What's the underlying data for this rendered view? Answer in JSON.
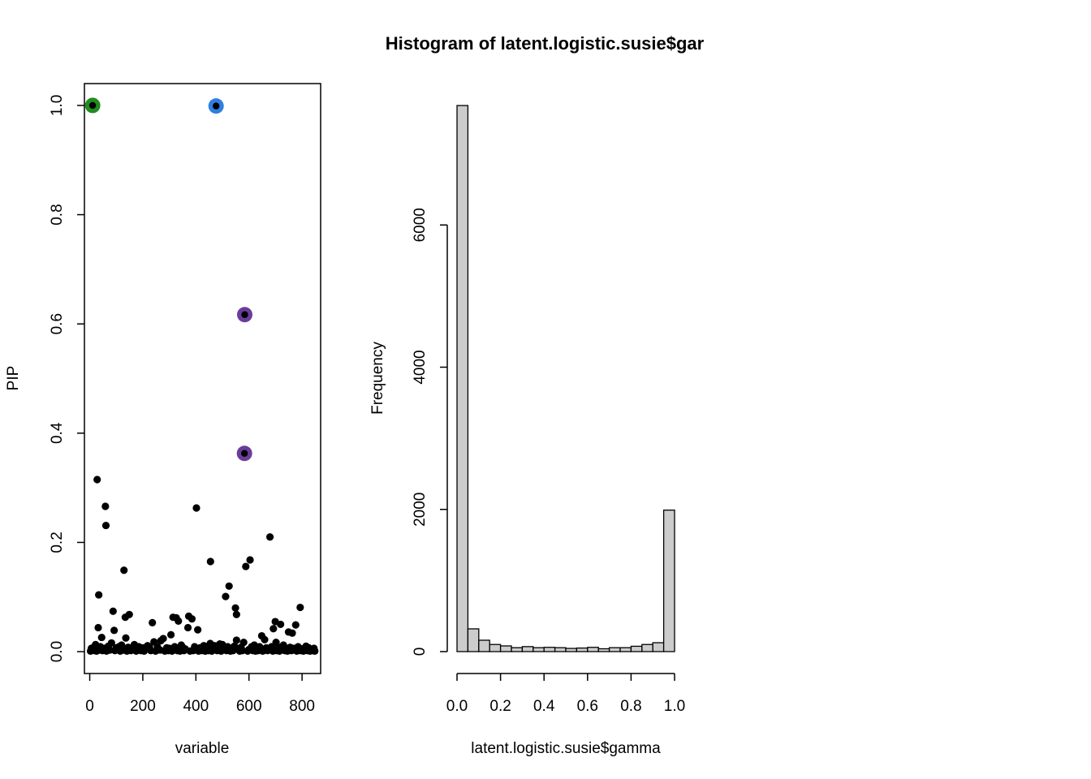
{
  "chart_data": [
    {
      "type": "scatter",
      "title": "",
      "xlabel": "variable",
      "ylabel": "PIP",
      "xlim": [
        -20,
        870
      ],
      "ylim": [
        -0.04,
        1.04
      ],
      "x_ticks": [
        "0",
        "200",
        "400",
        "600",
        "800"
      ],
      "y_ticks": [
        "0.0",
        "0.2",
        "0.4",
        "0.6",
        "0.8",
        "1.0"
      ],
      "highlighted": [
        {
          "x": 11,
          "y": 1.0,
          "color": "#228B22"
        },
        {
          "x": 476,
          "y": 0.999,
          "color": "#2F7FDF"
        },
        {
          "x": 584,
          "y": 0.617,
          "color": "#6A3D9A"
        },
        {
          "x": 583,
          "y": 0.363,
          "color": "#6A3D9A"
        }
      ],
      "points": [
        [
          28,
          0.315
        ],
        [
          59,
          0.266
        ],
        [
          61,
          0.231
        ],
        [
          402,
          0.263
        ],
        [
          679,
          0.21
        ],
        [
          455,
          0.165
        ],
        [
          604,
          0.168
        ],
        [
          588,
          0.156
        ],
        [
          129,
          0.149
        ],
        [
          525,
          0.12
        ],
        [
          34,
          0.104
        ],
        [
          512,
          0.101
        ],
        [
          793,
          0.081
        ],
        [
          549,
          0.08
        ],
        [
          88,
          0.074
        ],
        [
          149,
          0.068
        ],
        [
          553,
          0.068
        ],
        [
          373,
          0.065
        ],
        [
          314,
          0.063
        ],
        [
          134,
          0.063
        ],
        [
          385,
          0.06
        ],
        [
          326,
          0.062
        ],
        [
          334,
          0.056
        ],
        [
          699,
          0.055
        ],
        [
          719,
          0.05
        ],
        [
          236,
          0.053
        ],
        [
          776,
          0.049
        ],
        [
          32,
          0.044
        ],
        [
          370,
          0.044
        ],
        [
          692,
          0.042
        ],
        [
          407,
          0.04
        ],
        [
          92,
          0.039
        ],
        [
          749,
          0.036
        ],
        [
          763,
          0.034
        ],
        [
          306,
          0.031
        ],
        [
          648,
          0.029
        ],
        [
          45,
          0.026
        ],
        [
          136,
          0.025
        ],
        [
          277,
          0.024
        ],
        [
          659,
          0.022
        ],
        [
          553,
          0.021
        ],
        [
          268,
          0.02
        ],
        [
          242,
          0.018
        ],
        [
          702,
          0.017
        ],
        [
          82,
          0.016
        ],
        [
          580,
          0.017
        ],
        [
          22,
          0.013
        ],
        [
          454,
          0.015
        ],
        [
          490,
          0.014
        ],
        [
          120,
          0.012
        ],
        [
          168,
          0.013
        ],
        [
          218,
          0.011
        ],
        [
          345,
          0.012
        ],
        [
          430,
          0.011
        ],
        [
          500,
          0.013
        ],
        [
          620,
          0.012
        ],
        [
          730,
          0.012
        ],
        [
          815,
          0.01
        ],
        [
          6,
          0.006
        ],
        [
          15,
          0.008
        ],
        [
          40,
          0.009
        ],
        [
          55,
          0.006
        ],
        [
          70,
          0.01
        ],
        [
          100,
          0.007
        ],
        [
          110,
          0.009
        ],
        [
          145,
          0.008
        ],
        [
          160,
          0.006
        ],
        [
          185,
          0.009
        ],
        [
          200,
          0.007
        ],
        [
          210,
          0.005
        ],
        [
          225,
          0.008
        ],
        [
          255,
          0.009
        ],
        [
          260,
          0.004
        ],
        [
          290,
          0.007
        ],
        [
          300,
          0.006
        ],
        [
          320,
          0.009
        ],
        [
          350,
          0.008
        ],
        [
          360,
          0.005
        ],
        [
          395,
          0.009
        ],
        [
          415,
          0.007
        ],
        [
          440,
          0.008
        ],
        [
          465,
          0.006
        ],
        [
          470,
          0.011
        ],
        [
          505,
          0.005
        ],
        [
          520,
          0.009
        ],
        [
          535,
          0.006
        ],
        [
          545,
          0.01
        ],
        [
          560,
          0.005
        ],
        [
          570,
          0.008
        ],
        [
          600,
          0.004
        ],
        [
          610,
          0.009
        ],
        [
          630,
          0.006
        ],
        [
          640,
          0.009
        ],
        [
          665,
          0.007
        ],
        [
          675,
          0.005
        ],
        [
          685,
          0.009
        ],
        [
          710,
          0.006
        ],
        [
          720,
          0.008
        ],
        [
          740,
          0.005
        ],
        [
          755,
          0.008
        ],
        [
          770,
          0.006
        ],
        [
          785,
          0.009
        ],
        [
          800,
          0.005
        ],
        [
          825,
          0.007
        ],
        [
          835,
          0.004
        ],
        [
          845,
          0.006
        ],
        [
          3,
          0.001
        ],
        [
          18,
          0.002
        ],
        [
          26,
          0.001
        ],
        [
          37,
          0.003
        ],
        [
          48,
          0.002
        ],
        [
          63,
          0.001
        ],
        [
          76,
          0.003
        ],
        [
          95,
          0.002
        ],
        [
          115,
          0.001
        ],
        [
          127,
          0.003
        ],
        [
          140,
          0.001
        ],
        [
          155,
          0.002
        ],
        [
          175,
          0.001
        ],
        [
          193,
          0.002
        ],
        [
          205,
          0.001
        ],
        [
          230,
          0.002
        ],
        [
          248,
          0.001
        ],
        [
          265,
          0.003
        ],
        [
          283,
          0.001
        ],
        [
          296,
          0.002
        ],
        [
          310,
          0.001
        ],
        [
          330,
          0.002
        ],
        [
          340,
          0.001
        ],
        [
          355,
          0.002
        ],
        [
          378,
          0.001
        ],
        [
          390,
          0.002
        ],
        [
          410,
          0.001
        ],
        [
          422,
          0.002
        ],
        [
          435,
          0.001
        ],
        [
          448,
          0.002
        ],
        [
          460,
          0.001
        ],
        [
          480,
          0.002
        ],
        [
          495,
          0.001
        ],
        [
          515,
          0.002
        ],
        [
          530,
          0.001
        ],
        [
          540,
          0.002
        ],
        [
          565,
          0.001
        ],
        [
          575,
          0.002
        ],
        [
          595,
          0.001
        ],
        [
          615,
          0.002
        ],
        [
          625,
          0.001
        ],
        [
          635,
          0.002
        ],
        [
          652,
          0.001
        ],
        [
          670,
          0.002
        ],
        [
          690,
          0.001
        ],
        [
          705,
          0.002
        ],
        [
          715,
          0.001
        ],
        [
          735,
          0.002
        ],
        [
          745,
          0.001
        ],
        [
          760,
          0.002
        ],
        [
          780,
          0.001
        ],
        [
          795,
          0.002
        ],
        [
          805,
          0.001
        ],
        [
          820,
          0.002
        ],
        [
          830,
          0.001
        ],
        [
          840,
          0.002
        ],
        [
          848,
          0.001
        ]
      ]
    },
    {
      "type": "bar",
      "title": "Histogram of latent.logistic.susie$gar",
      "xlabel": "latent.logistic.susie$gamma",
      "ylabel": "Frequency",
      "xlim": [
        0,
        1
      ],
      "ylim": [
        0,
        7700
      ],
      "bin_width": 0.05,
      "bin_starts": [
        0.0,
        0.05,
        0.1,
        0.15,
        0.2,
        0.25,
        0.3,
        0.35,
        0.4,
        0.45,
        0.5,
        0.55,
        0.6,
        0.65,
        0.7,
        0.75,
        0.8,
        0.85,
        0.9,
        0.95
      ],
      "values": [
        7680,
        320,
        160,
        100,
        80,
        55,
        70,
        55,
        60,
        55,
        45,
        50,
        60,
        40,
        55,
        55,
        75,
        100,
        125,
        1990
      ],
      "fill": "#CCCCCC",
      "x_ticks": [
        "0.0",
        "0.2",
        "0.4",
        "0.6",
        "0.8",
        "1.0"
      ],
      "y_ticks": [
        "0",
        "2000",
        "4000",
        "6000"
      ]
    }
  ]
}
